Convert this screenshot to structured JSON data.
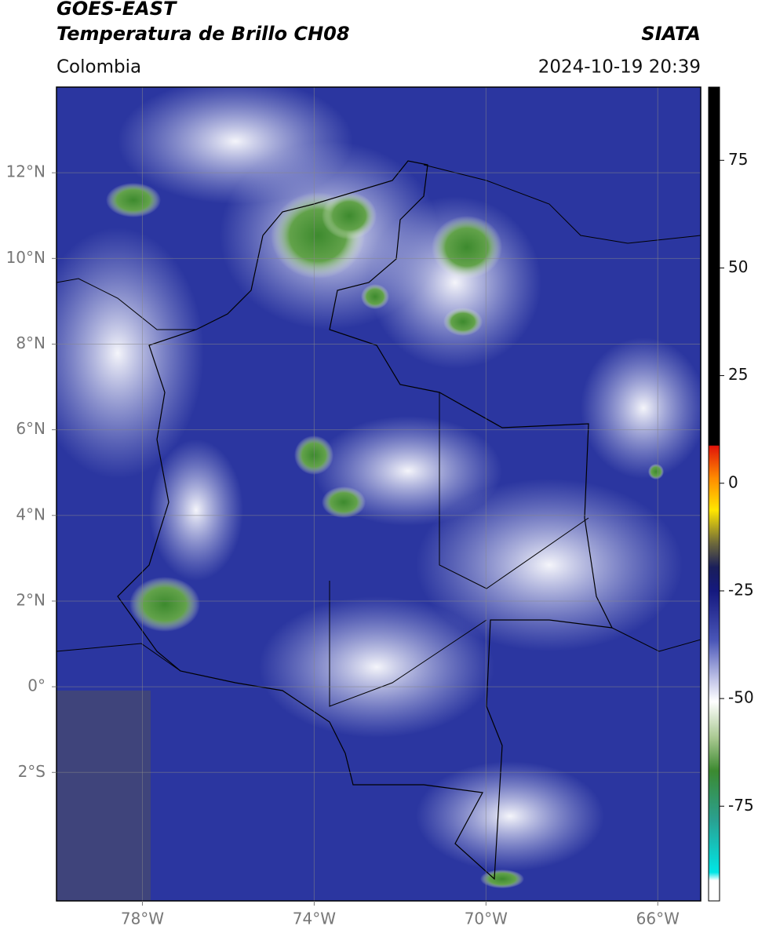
{
  "header": {
    "title_1": "GOES-EAST",
    "title_2": "Temperatura de Brillo CH08",
    "source": "SIATA",
    "region": "Colombia",
    "datetime": "2024-10-19 20:39"
  },
  "map": {
    "lon_range": [
      -80,
      -65
    ],
    "lat_range": [
      -5,
      14
    ],
    "xticks": [
      {
        "value": -78,
        "label": "78°W"
      },
      {
        "value": -74,
        "label": "74°W"
      },
      {
        "value": -70,
        "label": "70°W"
      },
      {
        "value": -66,
        "label": "66°W"
      }
    ],
    "yticks": [
      {
        "value": 12,
        "label": "12°N"
      },
      {
        "value": 10,
        "label": "10°N"
      },
      {
        "value": 8,
        "label": "8°N"
      },
      {
        "value": 6,
        "label": "6°N"
      },
      {
        "value": 4,
        "label": "4°N"
      },
      {
        "value": 2,
        "label": "2°N"
      },
      {
        "value": 0,
        "label": "0°"
      },
      {
        "value": -2,
        "label": "2°S"
      }
    ]
  },
  "colorbar": {
    "range": [
      -97,
      92
    ],
    "ticks": [
      75,
      50,
      25,
      0,
      -25,
      -50,
      -75
    ]
  }
}
